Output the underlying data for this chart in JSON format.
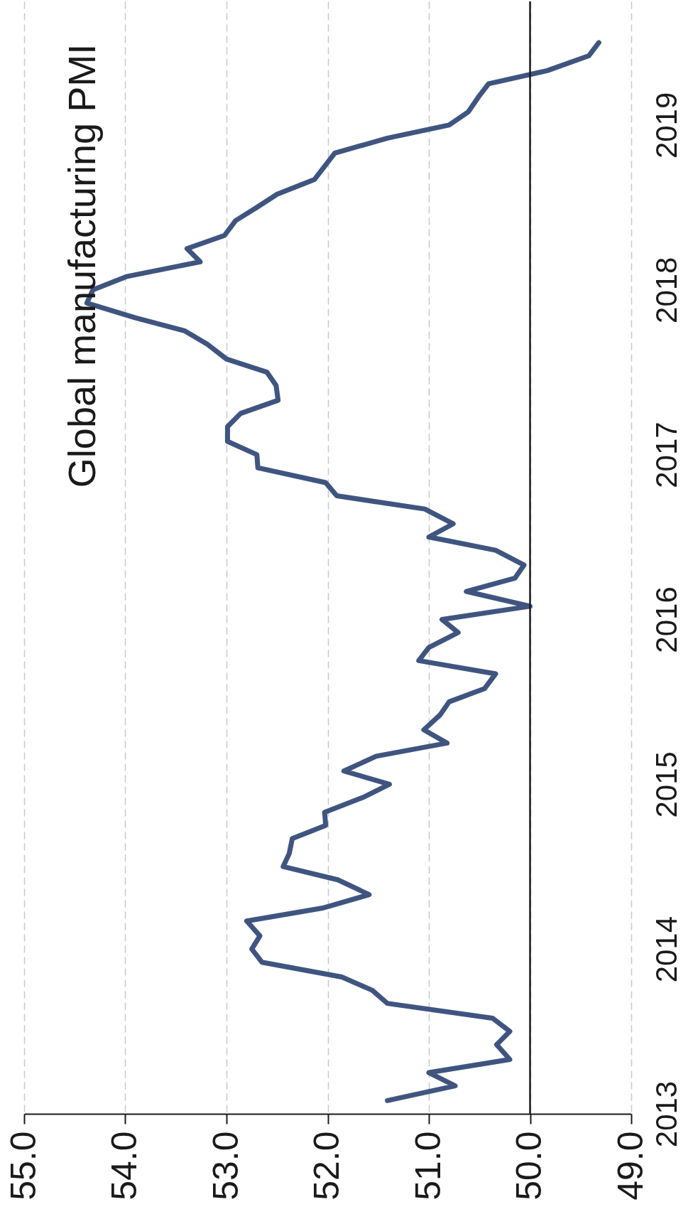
{
  "chart_data": {
    "type": "line",
    "title": "Global manufacturing PMI",
    "x": [
      51.41,
      50.74,
      51.0,
      50.2,
      50.33,
      50.2,
      50.37,
      51.41,
      51.56,
      51.86,
      52.65,
      52.75,
      52.67,
      52.8,
      52.04,
      51.59,
      51.9,
      52.44,
      52.38,
      52.35,
      52.02,
      52.03,
      51.65,
      51.39,
      51.84,
      51.52,
      50.82,
      51.05,
      50.89,
      50.8,
      50.45,
      50.34,
      51.1,
      51.0,
      50.71,
      50.87,
      50.0,
      50.63,
      50.15,
      50.06,
      50.34,
      51.0,
      50.76,
      51.04,
      51.91,
      52.02,
      52.69,
      52.7,
      52.99,
      52.99,
      52.86,
      52.49,
      52.51,
      52.6,
      53.0,
      53.19,
      53.41,
      53.9,
      54.38,
      54.32,
      53.99,
      53.26,
      53.39,
      53.02,
      52.91,
      52.7,
      52.5,
      52.13,
      52.03,
      51.93,
      51.41,
      50.8,
      50.61,
      50.51,
      50.41,
      49.83,
      49.42,
      49.32
    ],
    "series": [
      {
        "color": "#3f5580",
        "values": [
          2013.08,
          2013.17,
          2013.25,
          2013.33,
          2013.42,
          2013.5,
          2013.58,
          2013.67,
          2013.75,
          2013.83,
          2013.92,
          2014.0,
          2014.08,
          2014.17,
          2014.25,
          2014.33,
          2014.42,
          2014.5,
          2014.58,
          2014.67,
          2014.75,
          2014.83,
          2014.92,
          2015.0,
          2015.08,
          2015.17,
          2015.25,
          2015.33,
          2015.42,
          2015.5,
          2015.58,
          2015.67,
          2015.75,
          2015.83,
          2015.92,
          2016.0,
          2016.08,
          2016.17,
          2016.25,
          2016.33,
          2016.42,
          2016.5,
          2016.58,
          2016.67,
          2016.75,
          2016.83,
          2016.92,
          2017.0,
          2017.08,
          2017.17,
          2017.25,
          2017.33,
          2017.42,
          2017.5,
          2017.58,
          2017.67,
          2017.75,
          2017.83,
          2017.92,
          2018.0,
          2018.08,
          2018.17,
          2018.25,
          2018.33,
          2018.42,
          2018.5,
          2018.58,
          2018.67,
          2018.75,
          2018.83,
          2018.92,
          2019.0,
          2019.08,
          2019.17,
          2019.25,
          2019.33,
          2019.42,
          2019.5
        ]
      }
    ],
    "xlim": [
      55,
      49
    ],
    "xticks": [
      {
        "value": 55,
        "label": "55.0"
      },
      {
        "value": 54,
        "label": "54.0"
      },
      {
        "value": 53,
        "label": "53.0"
      },
      {
        "value": 52,
        "label": "52.0"
      },
      {
        "value": 51,
        "label": "51.0"
      },
      {
        "value": 50,
        "label": "50.0"
      },
      {
        "value": 49,
        "label": "49.0"
      }
    ],
    "ylim": [
      2013,
      2019.75
    ],
    "yticks": [
      2013,
      2014,
      2015,
      2016,
      2017,
      2018,
      2019
    ],
    "ref_lines": [
      {
        "axis": "x",
        "value": 50,
        "color": "#1a1a1a"
      }
    ],
    "grid": "x",
    "line_style": "solid"
  }
}
